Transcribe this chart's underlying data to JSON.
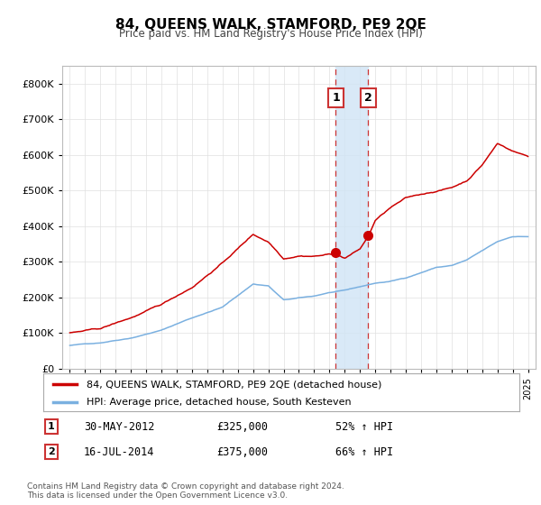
{
  "title": "84, QUEENS WALK, STAMFORD, PE9 2QE",
  "subtitle": "Price paid vs. HM Land Registry's House Price Index (HPI)",
  "legend_line1": "84, QUEENS WALK, STAMFORD, PE9 2QE (detached house)",
  "legend_line2": "HPI: Average price, detached house, South Kesteven",
  "sale1_date": "30-MAY-2012",
  "sale1_price": "£325,000",
  "sale1_hpi": "52% ↑ HPI",
  "sale2_date": "16-JUL-2014",
  "sale2_price": "£375,000",
  "sale2_hpi": "66% ↑ HPI",
  "footer": "Contains HM Land Registry data © Crown copyright and database right 2024.\nThis data is licensed under the Open Government Licence v3.0.",
  "hpi_color": "#7ab0e0",
  "price_color": "#cc0000",
  "sale1_x": 2012.42,
  "sale2_x": 2014.54,
  "sale1_y": 325000,
  "sale2_y": 375000,
  "shade_x1": 2012.42,
  "shade_x2": 2014.54,
  "ylim": [
    0,
    850000
  ],
  "xlim": [
    1994.5,
    2025.5
  ],
  "yticks": [
    0,
    100000,
    200000,
    300000,
    400000,
    500000,
    600000,
    700000,
    800000
  ]
}
